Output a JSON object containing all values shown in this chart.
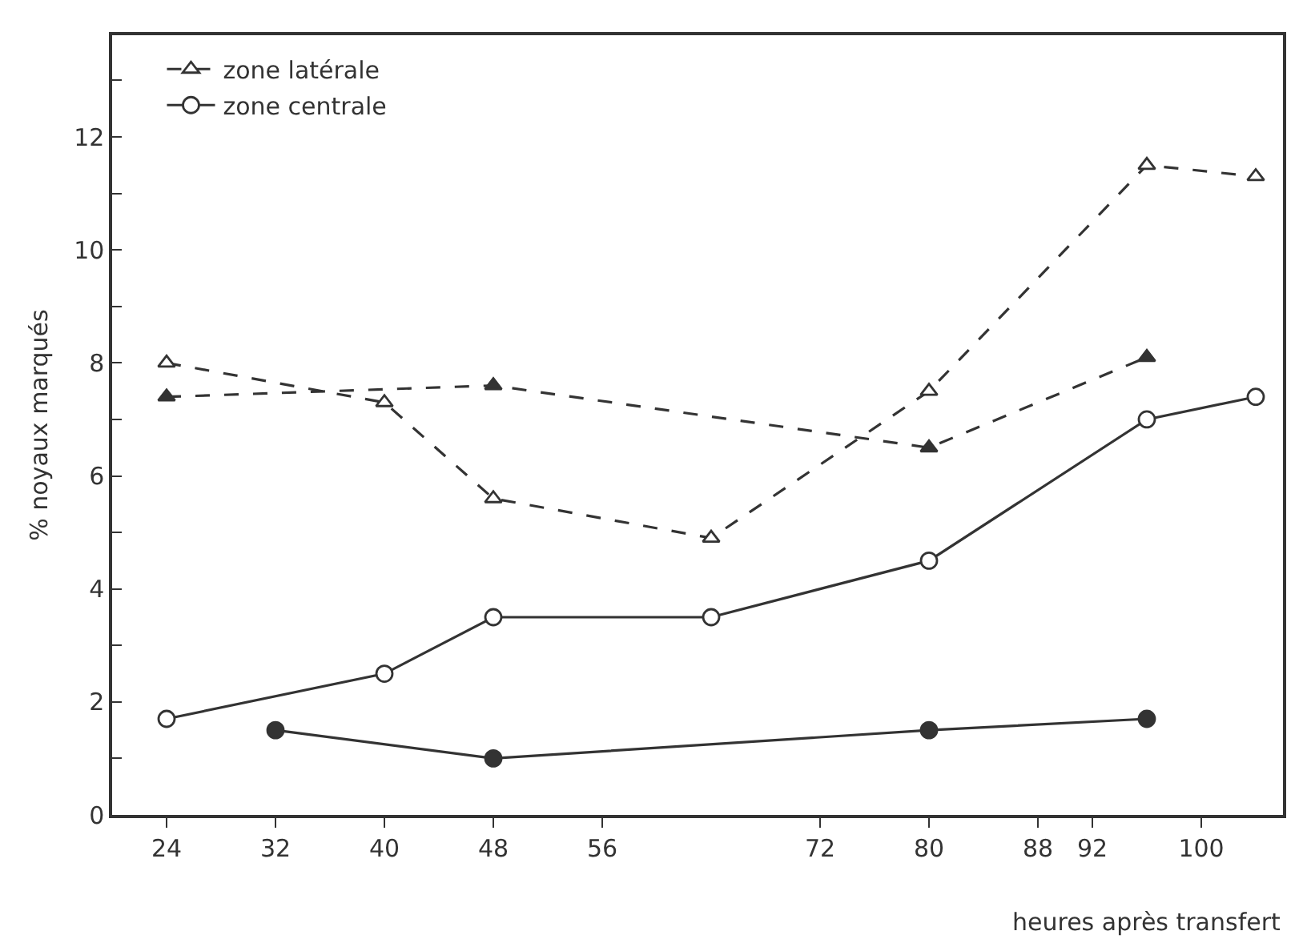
{
  "chart_data": {
    "type": "line",
    "xlabel": "heures après transfert",
    "ylabel": "% noyaux marqués",
    "xlim": [
      20,
      106
    ],
    "xticks": [
      24,
      32,
      40,
      48,
      56,
      72,
      80,
      88,
      92,
      100
    ],
    "ylim": [
      0,
      13.8
    ],
    "yticks": [
      0,
      {
        "value": 1,
        "label": null
      },
      2,
      {
        "value": 3,
        "label": null
      },
      4,
      {
        "value": 5,
        "label": null
      },
      6,
      {
        "value": 7,
        "label": null
      },
      8,
      {
        "value": 9,
        "label": null
      },
      10,
      {
        "value": 11,
        "label": null
      },
      12,
      {
        "value": 13,
        "label": null
      }
    ],
    "grid": false,
    "legend": "top left",
    "series": [
      {
        "name": "zone latérale",
        "color": "#333333",
        "line_style": "dashed",
        "marker": "triangle",
        "colors": [
          "#ffffff",
          "#ffffff",
          "#ffffff",
          "#ffffff",
          "#ffffff",
          "#ffffff",
          "#ffffff"
        ],
        "x": [
          24,
          40,
          48,
          64,
          80,
          96,
          104
        ],
        "values": [
          8.0,
          7.3,
          5.6,
          4.9,
          7.5,
          11.5,
          11.3
        ]
      },
      {
        "color": "#333333",
        "line_style": "dashed",
        "marker": "triangle",
        "colors": [
          "#333333",
          "#333333",
          "#333333",
          "#333333"
        ],
        "x": [
          24,
          48,
          80,
          96
        ],
        "values": [
          7.4,
          7.6,
          6.5,
          8.1
        ]
      },
      {
        "name": "zone centrale",
        "color": "#333333",
        "line_style": "solid",
        "marker": "circle",
        "colors": [
          "#ffffff",
          "#ffffff",
          "#ffffff",
          "#ffffff",
          "#ffffff",
          "#ffffff",
          "#ffffff"
        ],
        "x": [
          24,
          40,
          48,
          64,
          80,
          96,
          104
        ],
        "values": [
          1.7,
          2.5,
          3.5,
          3.5,
          4.5,
          7.0,
          7.4
        ]
      },
      {
        "color": "#333333",
        "line_style": "solid",
        "marker": "circle",
        "colors": [
          "#333333",
          "#333333",
          "#333333",
          "#333333"
        ],
        "x": [
          32,
          48,
          80,
          96
        ],
        "values": [
          1.5,
          1.0,
          1.5,
          1.7
        ]
      }
    ]
  }
}
